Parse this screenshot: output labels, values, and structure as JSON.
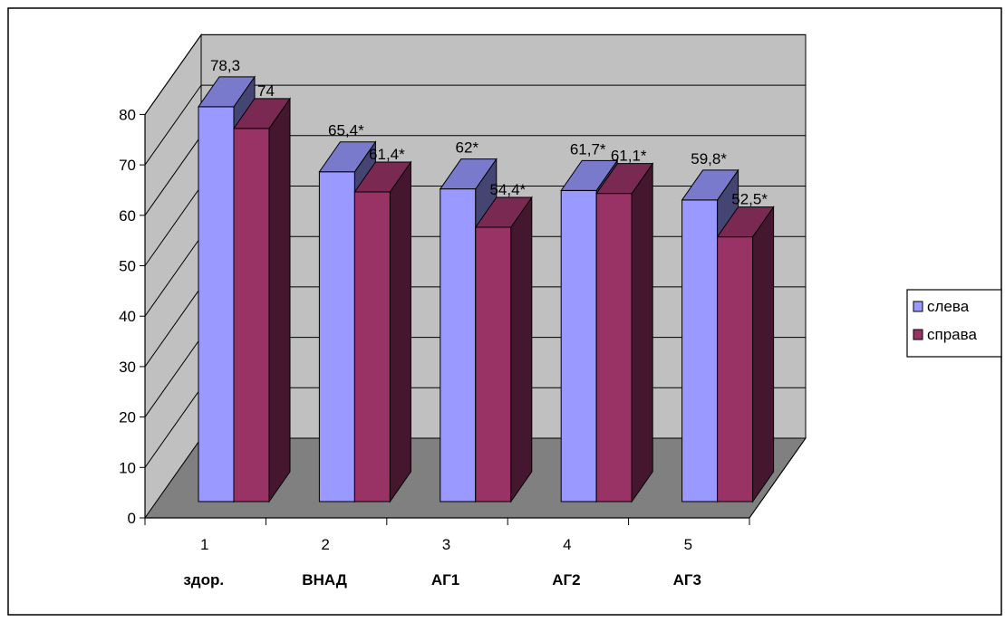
{
  "chart_data": {
    "type": "bar",
    "categories": [
      "1",
      "2",
      "3",
      "4",
      "5"
    ],
    "category_sublabels": [
      "здор.",
      "ВНАД",
      "АГ1",
      "АГ2",
      "АГ3"
    ],
    "series": [
      {
        "name": "слева",
        "color": "#9999ff",
        "values": [
          78.3,
          65.4,
          62,
          61.7,
          59.8
        ],
        "labels": [
          "78,3",
          "65,4*",
          "62*",
          "61,7*",
          "59,8*"
        ]
      },
      {
        "name": "справа",
        "color": "#993366",
        "values": [
          74,
          61.4,
          54.4,
          61.1,
          52.5
        ],
        "labels": [
          "74",
          "61,4*",
          "54,4*",
          "61,1*",
          "52,5*"
        ]
      }
    ],
    "ylim": [
      0,
      80
    ],
    "yticks": [
      "0",
      "10",
      "20",
      "30",
      "40",
      "50",
      "60",
      "70",
      "80"
    ],
    "grid": true,
    "legend_position": "right",
    "three_d": true,
    "wall_color": "#c0c0c0",
    "floor_color": "#808080"
  }
}
